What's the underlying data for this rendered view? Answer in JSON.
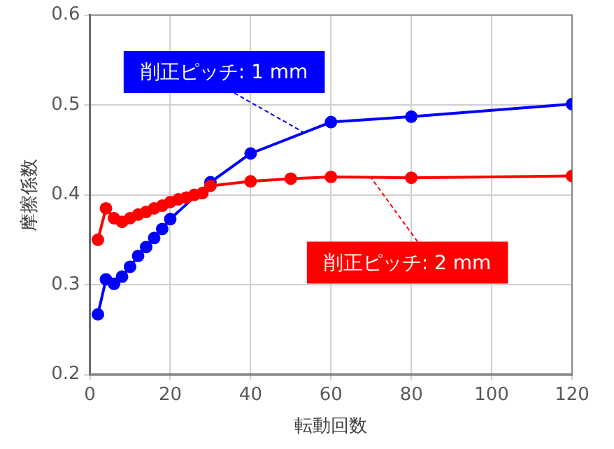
{
  "chart_data": {
    "type": "line",
    "xlabel": "転動回数",
    "ylabel": "摩擦係数",
    "xlim": [
      0,
      120
    ],
    "xticks": [
      0,
      20,
      40,
      60,
      80,
      100,
      120
    ],
    "ylim": [
      0.2,
      0.6
    ],
    "yticks": [
      0.2,
      0.3,
      0.4,
      0.5,
      0.6
    ],
    "grid": true,
    "legend": false,
    "marker": "circle",
    "line_style": "solid",
    "series": [
      {
        "color": "#0000ff",
        "x": [
          2,
          4,
          6,
          8,
          10,
          12,
          14,
          16,
          18,
          20,
          30,
          40,
          60,
          80,
          120
        ],
        "values": [
          0.267,
          0.306,
          0.301,
          0.309,
          0.32,
          0.332,
          0.342,
          0.352,
          0.362,
          0.373,
          0.414,
          0.446,
          0.481,
          0.487,
          0.501
        ]
      },
      {
        "color": "#ff0000",
        "x": [
          2,
          4,
          6,
          8,
          10,
          12,
          14,
          16,
          18,
          20,
          22,
          24,
          26,
          28,
          30,
          40,
          50,
          60,
          80,
          120
        ],
        "values": [
          0.35,
          0.385,
          0.374,
          0.37,
          0.374,
          0.378,
          0.381,
          0.385,
          0.388,
          0.392,
          0.395,
          0.397,
          0.4,
          0.402,
          0.41,
          0.415,
          0.418,
          0.42,
          0.419,
          0.421
        ]
      }
    ],
    "annotations": [
      {
        "text": "削正ピッチ: 1 mm",
        "x": 53,
        "y": 0.47
      },
      {
        "text": "削正ピッチ: 2 mm",
        "x": 70,
        "y": 0.419
      }
    ]
  }
}
